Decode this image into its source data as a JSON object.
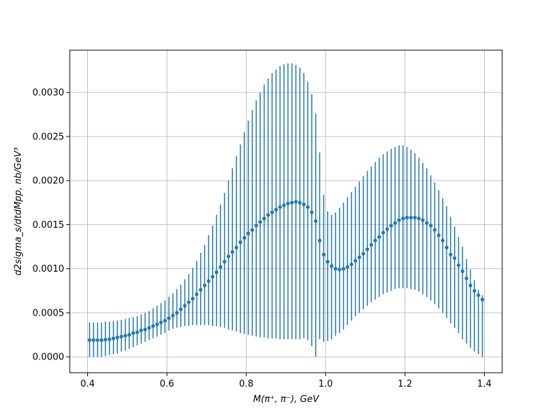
{
  "chart_data": {
    "type": "scatter",
    "xlabel": "M(π⁺, π⁻), GeV",
    "ylabel": "d2sigma_s/dtdMpp, nb/GeV³",
    "xlim": [
      0.355,
      1.445
    ],
    "ylim": [
      -0.00018,
      0.00348
    ],
    "xticks": [
      0.4,
      0.6,
      0.8,
      1.0,
      1.2,
      1.4
    ],
    "xtick_labels": [
      "0.4",
      "0.6",
      "0.8",
      "1.0",
      "1.2",
      "1.4"
    ],
    "yticks": [
      0.0,
      0.0005,
      0.001,
      0.0015,
      0.002,
      0.0025,
      0.003
    ],
    "ytick_labels": [
      "0.0000",
      "0.0005",
      "0.0010",
      "0.0015",
      "0.0020",
      "0.0025",
      "0.0030"
    ],
    "grid": true,
    "legend": "none",
    "colors": {
      "series": "#1f77b4",
      "grid": "#b0b0b0",
      "axis": "#000000"
    },
    "series": [
      {
        "x": [
          0.405,
          0.415,
          0.425,
          0.435,
          0.445,
          0.455,
          0.465,
          0.475,
          0.485,
          0.495,
          0.505,
          0.515,
          0.525,
          0.535,
          0.545,
          0.555,
          0.565,
          0.575,
          0.585,
          0.595,
          0.605,
          0.615,
          0.625,
          0.635,
          0.645,
          0.655,
          0.665,
          0.675,
          0.685,
          0.695,
          0.705,
          0.715,
          0.725,
          0.735,
          0.745,
          0.755,
          0.765,
          0.775,
          0.785,
          0.795,
          0.805,
          0.815,
          0.825,
          0.835,
          0.845,
          0.855,
          0.865,
          0.875,
          0.885,
          0.895,
          0.905,
          0.915,
          0.925,
          0.935,
          0.945,
          0.955,
          0.965,
          0.975,
          0.985,
          0.995,
          1.005,
          1.015,
          1.025,
          1.035,
          1.045,
          1.055,
          1.065,
          1.075,
          1.085,
          1.095,
          1.105,
          1.115,
          1.125,
          1.135,
          1.145,
          1.155,
          1.165,
          1.175,
          1.185,
          1.195,
          1.205,
          1.215,
          1.225,
          1.235,
          1.245,
          1.255,
          1.265,
          1.275,
          1.285,
          1.295,
          1.305,
          1.315,
          1.325,
          1.335,
          1.345,
          1.355,
          1.365,
          1.375,
          1.385,
          1.395
        ],
        "y": [
          0.00019,
          0.00019,
          0.00019,
          0.00019,
          0.000195,
          0.0002,
          0.00021,
          0.00022,
          0.00023,
          0.00024,
          0.00025,
          0.00027,
          0.00028,
          0.0003,
          0.00031,
          0.00033,
          0.00035,
          0.00037,
          0.00039,
          0.00041,
          0.00044,
          0.00047,
          0.0005,
          0.00054,
          0.00058,
          0.00062,
          0.00066,
          0.00071,
          0.00076,
          0.00081,
          0.00086,
          0.00091,
          0.00096,
          0.00102,
          0.00108,
          0.00114,
          0.00119,
          0.00124,
          0.0013,
          0.00135,
          0.0014,
          0.00144,
          0.00149,
          0.00153,
          0.00157,
          0.00161,
          0.00164,
          0.00167,
          0.0017,
          0.00172,
          0.00174,
          0.00175,
          0.00176,
          0.00175,
          0.00173,
          0.0017,
          0.00164,
          0.00154,
          0.00132,
          0.00116,
          0.00108,
          0.00103,
          0.001,
          0.00099,
          0.001,
          0.00102,
          0.00105,
          0.00109,
          0.00113,
          0.00117,
          0.00122,
          0.00127,
          0.00132,
          0.00136,
          0.00141,
          0.00145,
          0.00149,
          0.00152,
          0.00155,
          0.00157,
          0.00158,
          0.00158,
          0.00158,
          0.00157,
          0.00155,
          0.00152,
          0.00149,
          0.00144,
          0.00138,
          0.00132,
          0.00124,
          0.00116,
          0.00112,
          0.00104,
          0.00097,
          0.00089,
          0.00081,
          0.00075,
          0.0007,
          0.00065
        ],
        "yerr_low": [
          0.0,
          0.0,
          0.0,
          0.0,
          1e-05,
          2e-05,
          3e-05,
          4e-05,
          6e-05,
          7e-05,
          9e-05,
          0.00011,
          0.00013,
          0.00015,
          0.00017,
          0.00019,
          0.00021,
          0.00023,
          0.00025,
          0.00027,
          0.0003,
          0.00032,
          0.00033,
          0.00034,
          0.00035,
          0.00035,
          0.00036,
          0.00036,
          0.00036,
          0.00036,
          0.00036,
          0.00035,
          0.00035,
          0.00034,
          0.00033,
          0.00031,
          0.0003,
          0.00029,
          0.00027,
          0.00026,
          0.00025,
          0.00024,
          0.00023,
          0.00022,
          0.00022,
          0.00021,
          0.00021,
          0.00021,
          0.0002,
          0.0002,
          0.0002,
          0.0002,
          0.0002,
          0.0002,
          0.00021,
          0.00019,
          0.00012,
          0.0,
          0.0002,
          0.00017,
          0.00018,
          0.0002,
          0.00024,
          0.00027,
          0.00031,
          0.00036,
          0.00041,
          0.00046,
          0.0005,
          0.00054,
          0.00058,
          0.00062,
          0.00065,
          0.00068,
          0.00071,
          0.00073,
          0.00075,
          0.00077,
          0.00078,
          0.00078,
          0.00078,
          0.00077,
          0.00076,
          0.00074,
          0.00071,
          0.00068,
          0.00064,
          0.0006,
          0.00055,
          0.0005,
          0.00044,
          0.00038,
          0.00033,
          0.00027,
          0.0002,
          0.00015,
          0.0001,
          6e-05,
          3e-05,
          0.0
        ],
        "yerr_high": [
          0.00039,
          0.00039,
          0.00039,
          0.00039,
          0.0004,
          0.0004,
          0.00041,
          0.00041,
          0.00042,
          0.00043,
          0.00044,
          0.00045,
          0.00046,
          0.00048,
          0.0005,
          0.00052,
          0.00055,
          0.00058,
          0.00061,
          0.00064,
          0.00068,
          0.00072,
          0.00077,
          0.00082,
          0.00088,
          0.00094,
          0.00101,
          0.00109,
          0.00118,
          0.00127,
          0.00138,
          0.00149,
          0.00161,
          0.00173,
          0.00186,
          0.002,
          0.00214,
          0.00228,
          0.00241,
          0.00255,
          0.00268,
          0.0028,
          0.00291,
          0.003,
          0.00309,
          0.00316,
          0.00322,
          0.00326,
          0.0033,
          0.00332,
          0.00333,
          0.00333,
          0.00331,
          0.00328,
          0.00322,
          0.00312,
          0.00298,
          0.00276,
          0.00232,
          0.00184,
          0.00165,
          0.00161,
          0.00164,
          0.00169,
          0.00175,
          0.00181,
          0.00187,
          0.00193,
          0.00199,
          0.00205,
          0.00211,
          0.00216,
          0.00221,
          0.00226,
          0.0023,
          0.00233,
          0.00236,
          0.00238,
          0.0024,
          0.0024,
          0.00238,
          0.00235,
          0.00231,
          0.00226,
          0.0022,
          0.00214,
          0.00206,
          0.00198,
          0.00189,
          0.0018,
          0.00171,
          0.00159,
          0.00148,
          0.00136,
          0.00125,
          0.00111,
          0.00099,
          0.00087,
          0.00076,
          0.0007
        ]
      }
    ]
  }
}
